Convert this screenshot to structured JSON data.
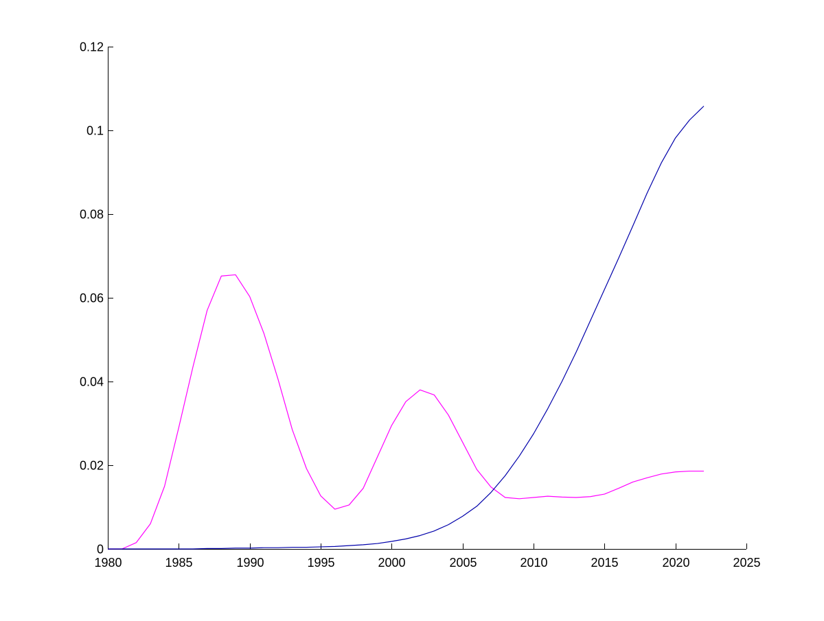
{
  "chart_data": {
    "type": "line",
    "title": "",
    "xlabel": "",
    "ylabel": "",
    "xlim": [
      1980,
      2025
    ],
    "ylim": [
      0,
      0.12
    ],
    "xticks": [
      1980,
      1985,
      1990,
      1995,
      2000,
      2005,
      2010,
      2015,
      2020,
      2025
    ],
    "yticks": [
      0,
      0.02,
      0.04,
      0.06,
      0.08,
      0.1,
      0.12
    ],
    "xtick_labels": [
      "1980",
      "1985",
      "1990",
      "1995",
      "2000",
      "2005",
      "2010",
      "2015",
      "2020",
      "2025"
    ],
    "ytick_labels": [
      "0",
      "0.02",
      "0.04",
      "0.06",
      "0.08",
      "0.1",
      "0.12"
    ],
    "grid": false,
    "legend": "none",
    "x": [
      1980,
      1981,
      1982,
      1983,
      1984,
      1985,
      1986,
      1987,
      1988,
      1989,
      1990,
      1991,
      1992,
      1993,
      1994,
      1995,
      1996,
      1997,
      1998,
      1999,
      2000,
      2001,
      2002,
      2003,
      2004,
      2005,
      2006,
      2007,
      2008,
      2009,
      2010,
      2011,
      2012,
      2013,
      2014,
      2015,
      2016,
      2017,
      2018,
      2019,
      2020,
      2021,
      2022
    ],
    "series": [
      {
        "color": "#ff00ff",
        "values": [
          0,
          0,
          0.0015,
          0.006,
          0.015,
          0.029,
          0.0435,
          0.057,
          0.0652,
          0.0655,
          0.0603,
          0.0515,
          0.0405,
          0.0285,
          0.0192,
          0.0127,
          0.0095,
          0.0105,
          0.0145,
          0.022,
          0.0295,
          0.0352,
          0.038,
          0.0368,
          0.032,
          0.0255,
          0.019,
          0.0148,
          0.0123,
          0.012,
          0.0123,
          0.0126,
          0.0124,
          0.0123,
          0.0125,
          0.0131,
          0.0145,
          0.016,
          0.017,
          0.0179,
          0.0184,
          0.0186,
          0.0186
        ]
      },
      {
        "color": "#0000aa",
        "values": [
          0,
          0,
          0,
          0,
          0,
          0,
          0,
          0.0001,
          0.0001,
          0.0002,
          0.0002,
          0.0003,
          0.0003,
          0.0004,
          0.0004,
          0.0005,
          0.0006,
          0.0008,
          0.001,
          0.0013,
          0.0018,
          0.0024,
          0.0032,
          0.0043,
          0.0058,
          0.0078,
          0.0102,
          0.0135,
          0.0175,
          0.0222,
          0.0275,
          0.0335,
          0.04,
          0.047,
          0.0545,
          0.062,
          0.0695,
          0.0772,
          0.085,
          0.0922,
          0.0982,
          0.1025,
          0.1058
        ]
      }
    ]
  }
}
